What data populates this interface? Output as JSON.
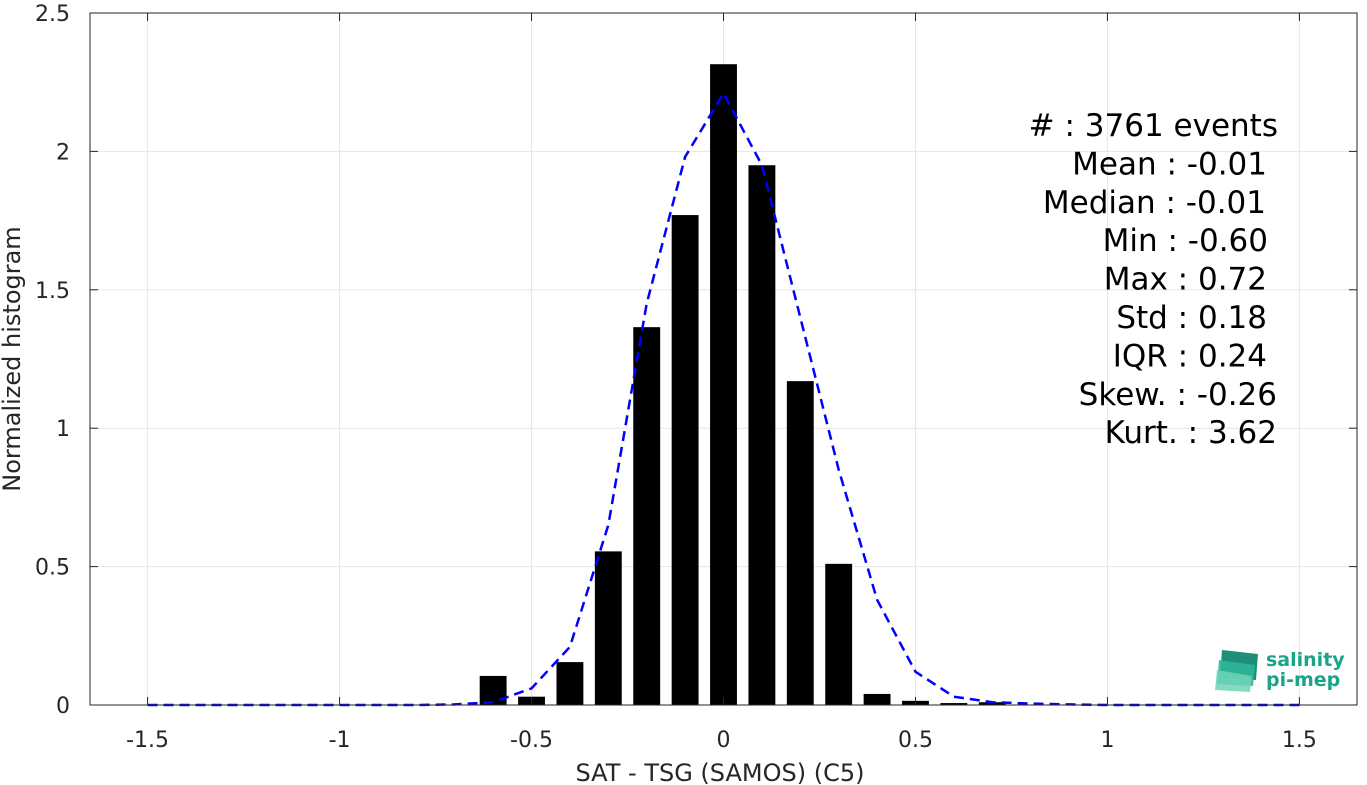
{
  "chart_data": {
    "type": "bar",
    "xlabel": "SAT - TSG (SAMOS) (C5)",
    "ylabel": "Normalized histogram",
    "xlim": [
      -1.65,
      1.65
    ],
    "ylim": [
      0,
      2.5
    ],
    "grid": true,
    "x_ticks": [
      -1.5,
      -1,
      -0.5,
      0,
      0.5,
      1,
      1.5
    ],
    "x_tick_labels": [
      "-1.5",
      "-1",
      "-0.5",
      "0",
      "0.5",
      "1",
      "1.5"
    ],
    "y_ticks": [
      0,
      0.5,
      1,
      1.5,
      2,
      2.5
    ],
    "y_tick_labels": [
      "0",
      "0.5",
      "1",
      "1.5",
      "2",
      "2.5"
    ],
    "bar_width": 0.07,
    "series": [
      {
        "type": "bar",
        "color": "#000000",
        "x": [
          -0.6,
          -0.5,
          -0.4,
          -0.3,
          -0.2,
          -0.1,
          0,
          0.1,
          0.2,
          0.3,
          0.4,
          0.5,
          0.6,
          0.7
        ],
        "values": [
          0.105,
          0.03,
          0.155,
          0.555,
          1.365,
          1.77,
          2.315,
          1.95,
          1.17,
          0.51,
          0.04,
          0.015,
          0.007,
          0.01
        ]
      },
      {
        "type": "line",
        "style": "dashed",
        "color": "#0000ff",
        "x": [
          -1.5,
          -1.4,
          -1.3,
          -1.2,
          -1.1,
          -1.0,
          -0.9,
          -0.8,
          -0.7,
          -0.6,
          -0.5,
          -0.4,
          -0.3,
          -0.2,
          -0.1,
          0,
          0.1,
          0.2,
          0.3,
          0.4,
          0.5,
          0.6,
          0.7,
          0.8,
          0.9,
          1.0,
          1.1,
          1.2,
          1.3,
          1.4,
          1.5
        ],
        "values": [
          0,
          0,
          0,
          0,
          0,
          0,
          0,
          0,
          0.002,
          0.01,
          0.06,
          0.21,
          0.65,
          1.45,
          1.98,
          2.21,
          1.95,
          1.4,
          0.85,
          0.38,
          0.12,
          0.03,
          0.01,
          0.005,
          0.002,
          0,
          0,
          0,
          0,
          0,
          0
        ]
      }
    ],
    "stats": [
      {
        "text": "#  : 3761 events"
      },
      {
        "text": "Mean : -0.01"
      },
      {
        "text": "Median : -0.01"
      },
      {
        "text": "Min : -0.60"
      },
      {
        "text": "Max : 0.72"
      },
      {
        "text": "Std : 0.18"
      },
      {
        "text": "IQR : 0.24"
      },
      {
        "text": "Skew. : -0.26"
      },
      {
        "text": "Kurt. : 3.62"
      }
    ]
  },
  "logo": {
    "line1": "salinity",
    "line2": "pi-mep"
  }
}
